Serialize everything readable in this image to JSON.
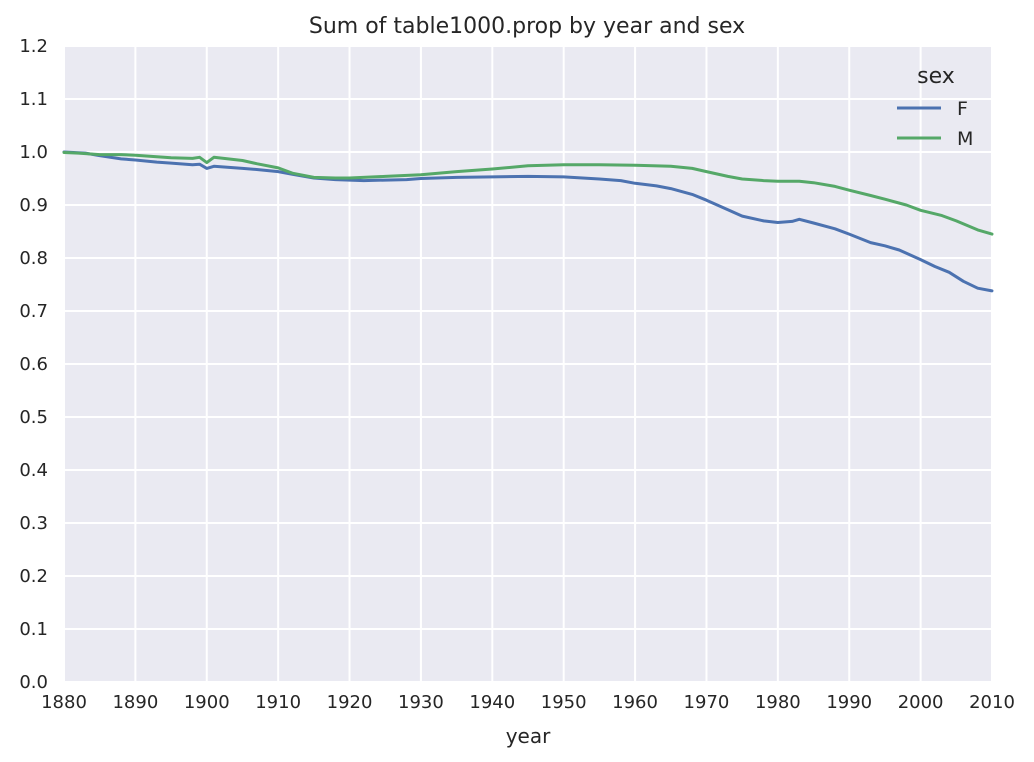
{
  "chart_data": {
    "type": "line",
    "title": "Sum of table1000.prop by year and sex",
    "xlabel": "year",
    "ylabel": "",
    "xlim": [
      1880,
      2010
    ],
    "ylim": [
      0.0,
      1.2
    ],
    "xticks": [
      1880,
      1890,
      1900,
      1910,
      1920,
      1930,
      1940,
      1950,
      1960,
      1970,
      1980,
      1990,
      2000,
      2010
    ],
    "xtick_labels": [
      "1880",
      "1890",
      "1900",
      "1910",
      "1920",
      "1930",
      "1940",
      "1950",
      "1960",
      "1970",
      "1980",
      "1990",
      "2000",
      "2010"
    ],
    "yticks": [
      0.0,
      0.1,
      0.2,
      0.3,
      0.4,
      0.5,
      0.6,
      0.7,
      0.8,
      0.9,
      1.0,
      1.1,
      1.2
    ],
    "ytick_labels": [
      "0.0",
      "0.1",
      "0.2",
      "0.3",
      "0.4",
      "0.5",
      "0.6",
      "0.7",
      "0.8",
      "0.9",
      "1.0",
      "1.1",
      "1.2"
    ],
    "grid": true,
    "legend": {
      "title": "sex",
      "placement": "top-right"
    },
    "series": [
      {
        "name": "F",
        "color": "#4c72b0",
        "points": [
          [
            1880,
            1.0
          ],
          [
            1883,
            0.998
          ],
          [
            1885,
            0.993
          ],
          [
            1888,
            0.987
          ],
          [
            1890,
            0.985
          ],
          [
            1893,
            0.981
          ],
          [
            1895,
            0.979
          ],
          [
            1898,
            0.976
          ],
          [
            1899,
            0.977
          ],
          [
            1900,
            0.969
          ],
          [
            1901,
            0.973
          ],
          [
            1905,
            0.969
          ],
          [
            1907,
            0.967
          ],
          [
            1910,
            0.963
          ],
          [
            1912,
            0.958
          ],
          [
            1915,
            0.951
          ],
          [
            1918,
            0.948
          ],
          [
            1920,
            0.947
          ],
          [
            1922,
            0.946
          ],
          [
            1925,
            0.947
          ],
          [
            1928,
            0.948
          ],
          [
            1930,
            0.95
          ],
          [
            1935,
            0.952
          ],
          [
            1940,
            0.953
          ],
          [
            1945,
            0.954
          ],
          [
            1950,
            0.953
          ],
          [
            1955,
            0.949
          ],
          [
            1958,
            0.946
          ],
          [
            1960,
            0.941
          ],
          [
            1963,
            0.936
          ],
          [
            1965,
            0.931
          ],
          [
            1968,
            0.92
          ],
          [
            1970,
            0.909
          ],
          [
            1973,
            0.891
          ],
          [
            1975,
            0.879
          ],
          [
            1978,
            0.87
          ],
          [
            1980,
            0.867
          ],
          [
            1982,
            0.869
          ],
          [
            1983,
            0.873
          ],
          [
            1985,
            0.866
          ],
          [
            1988,
            0.855
          ],
          [
            1990,
            0.845
          ],
          [
            1993,
            0.829
          ],
          [
            1995,
            0.823
          ],
          [
            1997,
            0.815
          ],
          [
            2000,
            0.797
          ],
          [
            2002,
            0.784
          ],
          [
            2004,
            0.773
          ],
          [
            2006,
            0.756
          ],
          [
            2008,
            0.743
          ],
          [
            2010,
            0.738
          ]
        ]
      },
      {
        "name": "M",
        "color": "#55a868",
        "points": [
          [
            1880,
            0.999
          ],
          [
            1882,
            0.998
          ],
          [
            1885,
            0.995
          ],
          [
            1888,
            0.995
          ],
          [
            1890,
            0.994
          ],
          [
            1893,
            0.991
          ],
          [
            1895,
            0.989
          ],
          [
            1898,
            0.988
          ],
          [
            1899,
            0.99
          ],
          [
            1900,
            0.98
          ],
          [
            1901,
            0.99
          ],
          [
            1905,
            0.984
          ],
          [
            1907,
            0.978
          ],
          [
            1910,
            0.97
          ],
          [
            1912,
            0.96
          ],
          [
            1915,
            0.952
          ],
          [
            1918,
            0.951
          ],
          [
            1920,
            0.951
          ],
          [
            1925,
            0.954
          ],
          [
            1930,
            0.957
          ],
          [
            1935,
            0.963
          ],
          [
            1940,
            0.968
          ],
          [
            1945,
            0.974
          ],
          [
            1950,
            0.976
          ],
          [
            1955,
            0.976
          ],
          [
            1960,
            0.975
          ],
          [
            1965,
            0.973
          ],
          [
            1968,
            0.969
          ],
          [
            1970,
            0.963
          ],
          [
            1973,
            0.954
          ],
          [
            1975,
            0.949
          ],
          [
            1978,
            0.946
          ],
          [
            1980,
            0.945
          ],
          [
            1983,
            0.945
          ],
          [
            1985,
            0.942
          ],
          [
            1988,
            0.935
          ],
          [
            1990,
            0.928
          ],
          [
            1993,
            0.918
          ],
          [
            1995,
            0.911
          ],
          [
            1998,
            0.9
          ],
          [
            2000,
            0.89
          ],
          [
            2003,
            0.88
          ],
          [
            2005,
            0.87
          ],
          [
            2008,
            0.853
          ],
          [
            2010,
            0.845
          ]
        ]
      }
    ]
  }
}
